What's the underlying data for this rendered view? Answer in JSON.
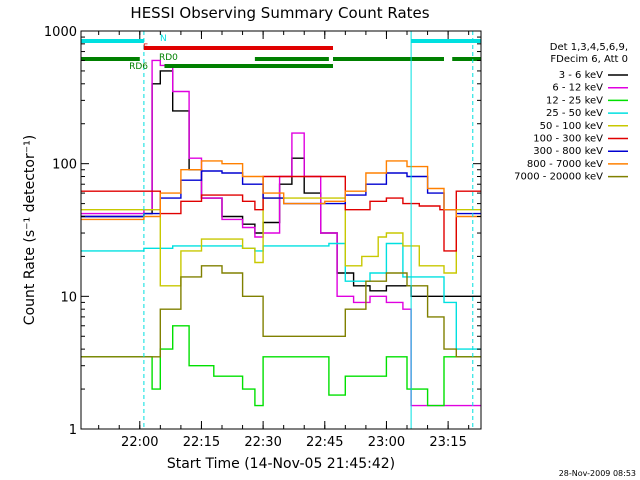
{
  "chart_data": {
    "type": "line",
    "title": "HESSI Observing Summary Count Rates",
    "xlabel": "Start Time (14-Nov-05 21:45:42)",
    "ylabel": "Count Rate (s⁻¹ detector⁻¹)",
    "x_scale": "time",
    "y_scale": "log",
    "xlim": [
      "21:45:42",
      "23:23:00"
    ],
    "ylim": [
      1,
      1000
    ],
    "x_ticks": [
      "22:00",
      "22:15",
      "22:30",
      "22:45",
      "23:00",
      "23:15"
    ],
    "y_ticks": [
      {
        "value": 1,
        "label": "1"
      },
      {
        "value": 10,
        "label": "10"
      },
      {
        "value": 100,
        "label": "100"
      },
      {
        "value": 1000,
        "label": "1000"
      }
    ],
    "grid": false,
    "legend_position": "right",
    "legend_header": [
      "Det 1,3,4,5,6,9,",
      "FDecim 6, Att 0"
    ],
    "series": [
      {
        "name": "3 - 6 keV",
        "color": "#000000",
        "x": [
          "21:45:42",
          "21:55",
          "22:01",
          "22:03",
          "22:05",
          "22:08",
          "22:12",
          "22:15",
          "22:20",
          "22:25",
          "22:28",
          "22:30",
          "22:34",
          "22:37",
          "22:40",
          "22:44",
          "22:48",
          "22:52",
          "22:56",
          "23:00",
          "23:04",
          "23:06"
        ],
        "values": [
          40,
          40,
          42,
          400,
          500,
          250,
          90,
          55,
          40,
          35,
          30,
          36,
          70,
          110,
          60,
          30,
          15,
          12,
          11,
          12,
          12,
          10
        ]
      },
      {
        "name": "6 - 12 keV",
        "color": "#e000e0",
        "x": [
          "21:45:42",
          "21:55",
          "22:01",
          "22:03",
          "22:05",
          "22:08",
          "22:12",
          "22:15",
          "22:20",
          "22:25",
          "22:28",
          "22:30",
          "22:34",
          "22:37",
          "22:40",
          "22:44",
          "22:48",
          "22:52",
          "22:56",
          "23:00",
          "23:04",
          "23:06"
        ],
        "values": [
          42,
          42,
          45,
          600,
          550,
          350,
          110,
          55,
          38,
          33,
          28,
          30,
          80,
          170,
          80,
          30,
          10,
          9,
          10,
          9,
          8,
          1.5
        ]
      },
      {
        "name": "12 - 25 keV",
        "color": "#00e000",
        "x": [
          "21:45:42",
          "22:01",
          "22:03",
          "22:05",
          "22:08",
          "22:12",
          "22:18",
          "22:25",
          "22:28",
          "22:30",
          "22:40",
          "22:46",
          "22:50",
          "23:00",
          "23:05",
          "23:10",
          "23:14"
        ],
        "values": [
          3.5,
          3.5,
          2,
          4,
          6,
          3,
          2.5,
          2,
          1.5,
          3.5,
          3.5,
          1.8,
          2.5,
          3.5,
          2,
          1.5,
          3.5
        ]
      },
      {
        "name": "25 - 50 keV",
        "color": "#00e0e0",
        "x": [
          "21:45:42",
          "22:01",
          "22:08",
          "22:15",
          "22:25",
          "22:28",
          "22:30",
          "22:35",
          "22:40",
          "22:46",
          "22:50",
          "22:56",
          "23:00",
          "23:04",
          "23:08",
          "23:14",
          "23:17"
        ],
        "values": [
          22,
          23,
          24,
          24,
          23,
          22,
          24,
          24,
          24,
          25,
          13,
          15,
          25,
          14,
          14,
          9,
          4
        ]
      },
      {
        "name": "50 - 100 keV",
        "color": "#c8c800",
        "x": [
          "21:45:42",
          "22:01",
          "22:05",
          "22:10",
          "22:15",
          "22:20",
          "22:25",
          "22:28",
          "22:30",
          "22:40",
          "22:46",
          "22:50",
          "22:54",
          "22:58",
          "23:00",
          "23:04",
          "23:08",
          "23:14",
          "23:17"
        ],
        "values": [
          45,
          45,
          12,
          22,
          27,
          27,
          23,
          18,
          55,
          55,
          55,
          17,
          20,
          28,
          30,
          24,
          17,
          15,
          45
        ]
      },
      {
        "name": "100 - 300 keV",
        "color": "#e00000",
        "x": [
          "21:45:42",
          "22:01",
          "22:05",
          "22:10",
          "22:15",
          "22:20",
          "22:25",
          "22:28",
          "22:30",
          "22:40",
          "22:46",
          "22:50",
          "22:56",
          "23:00",
          "23:04",
          "23:08",
          "23:13",
          "23:14",
          "23:17"
        ],
        "values": [
          62,
          62,
          42,
          52,
          58,
          58,
          52,
          45,
          80,
          80,
          80,
          45,
          52,
          55,
          50,
          48,
          45,
          22,
          62
        ]
      },
      {
        "name": "300 - 800 keV",
        "color": "#0000d0",
        "x": [
          "21:45:42",
          "22:01",
          "22:05",
          "22:10",
          "22:15",
          "22:20",
          "22:25",
          "22:30",
          "22:35",
          "22:40",
          "22:45",
          "22:50",
          "22:55",
          "23:00",
          "23:05",
          "23:10",
          "23:14",
          "23:17"
        ],
        "values": [
          40,
          42,
          55,
          75,
          88,
          85,
          70,
          55,
          50,
          50,
          50,
          58,
          70,
          85,
          80,
          60,
          45,
          42
        ]
      },
      {
        "name": "800 - 7000 keV",
        "color": "#ff8000",
        "x": [
          "21:45:42",
          "22:01",
          "22:05",
          "22:10",
          "22:15",
          "22:20",
          "22:25",
          "22:30",
          "22:35",
          "22:40",
          "22:45",
          "22:50",
          "22:55",
          "23:00",
          "23:05",
          "23:10",
          "23:14",
          "23:17"
        ],
        "values": [
          38,
          40,
          60,
          90,
          105,
          100,
          80,
          60,
          50,
          50,
          52,
          62,
          85,
          105,
          95,
          65,
          45,
          40
        ]
      },
      {
        "name": "7000 - 20000 keV",
        "color": "#808000",
        "x": [
          "21:45:42",
          "22:01",
          "22:05",
          "22:10",
          "22:15",
          "22:20",
          "22:25",
          "22:30",
          "22:40",
          "22:46",
          "22:50",
          "22:55",
          "23:00",
          "23:05",
          "23:10",
          "23:14",
          "23:17"
        ],
        "values": [
          3.5,
          3.5,
          8,
          14,
          17,
          15,
          10,
          5,
          5,
          5,
          8,
          13,
          15,
          12,
          7,
          4,
          3.5
        ]
      }
    ],
    "flag_bars": [
      {
        "label": "N",
        "color": "#00e0e0",
        "segments": [
          [
            "21:45:42",
            "22:01"
          ],
          [
            "23:06",
            "23:23:00"
          ]
        ]
      },
      {
        "label": "F",
        "color": "#e00000",
        "segments": [
          [
            "22:01",
            "22:47"
          ]
        ]
      },
      {
        "label": "RD0",
        "color": "#008000",
        "segments": [
          [
            "22:06",
            "22:47"
          ]
        ]
      },
      {
        "label": "RD6",
        "color": "#008000",
        "segments": [
          [
            "21:45:42",
            "22:00"
          ],
          [
            "22:28",
            "22:46"
          ],
          [
            "22:47",
            "23:14"
          ],
          [
            "23:16",
            "23:23:00"
          ]
        ]
      }
    ],
    "vertical_lines": [
      {
        "x": "22:01",
        "color": "#00e0e0",
        "style": "dashed"
      },
      {
        "x": "23:06",
        "color": "#00e0e0",
        "style": "solid"
      },
      {
        "x": "23:21",
        "color": "#00e0e0",
        "style": "dashed"
      }
    ]
  },
  "footer": {
    "timestamp": "28-Nov-2009 08:53"
  }
}
